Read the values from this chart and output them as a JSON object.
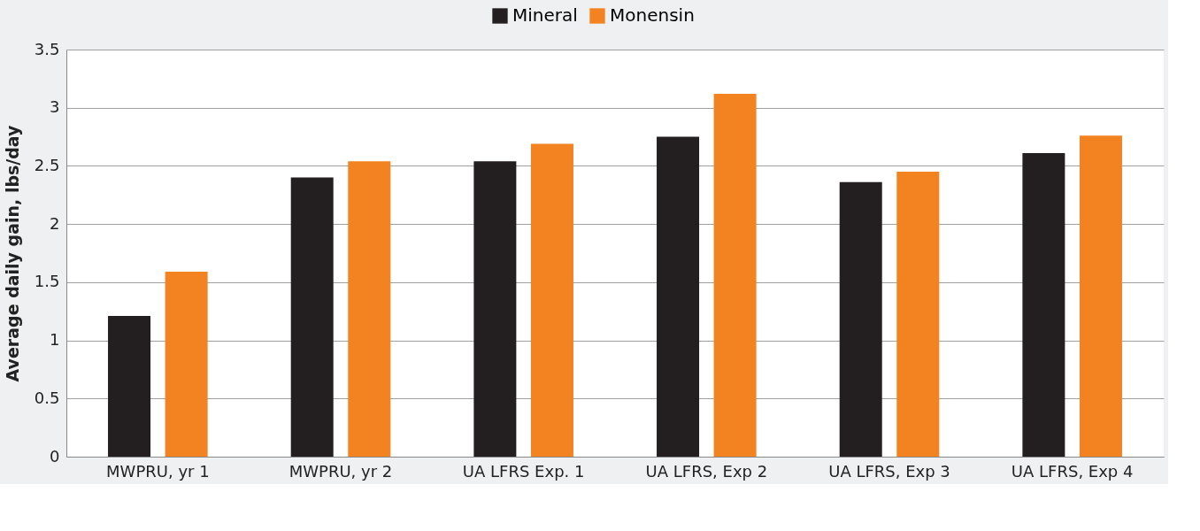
{
  "chart_data": {
    "type": "bar",
    "ylabel": "Average daily gain, lbs/day",
    "categories": [
      "MWPRU, yr 1",
      "MWPRU, yr 2",
      "UA LFRS Exp. 1",
      "UA LFRS, Exp 2",
      "UA LFRS, Exp 3",
      "UA LFRS, Exp 4"
    ],
    "series": [
      {
        "name": "Mineral",
        "color": "#231f20",
        "values": [
          1.21,
          2.4,
          2.54,
          2.75,
          2.36,
          2.61
        ]
      },
      {
        "name": "Monensin",
        "color": "#f38221",
        "values": [
          1.59,
          2.54,
          2.69,
          3.12,
          2.45,
          2.76
        ]
      }
    ],
    "ylim": [
      0,
      3.5
    ],
    "yticks": [
      0,
      0.5,
      1,
      1.5,
      2,
      2.5,
      3,
      3.5
    ],
    "grid": "y",
    "legend": "top"
  }
}
